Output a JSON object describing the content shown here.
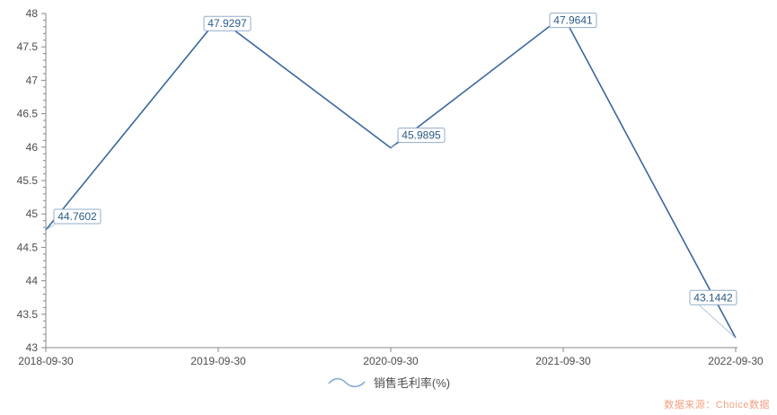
{
  "chart_data": {
    "type": "line",
    "title": "",
    "categories": [
      "2018-09-30",
      "2019-09-30",
      "2020-09-30",
      "2021-09-30",
      "2022-09-30"
    ],
    "series": [
      {
        "name": "销售毛利率(%)",
        "values": [
          44.7602,
          47.9297,
          45.9895,
          47.9641,
          43.1442
        ]
      }
    ],
    "point_labels": [
      "44.7602",
      "47.9297",
      "45.9895",
      "47.9641",
      "43.1442"
    ],
    "xlabel": "",
    "ylabel": "",
    "ylim": [
      43,
      48
    ],
    "y_tick_step": 0.5,
    "y_minor_tick_step": 0.1,
    "y_tick_labels": [
      "43",
      "43.5",
      "44",
      "44.5",
      "45",
      "45.5",
      "46",
      "46.5",
      "47",
      "47.5",
      "48"
    ],
    "grid": false,
    "legend_position": "bottom-center"
  },
  "legend": {
    "label": "销售毛利率(%)"
  },
  "source_note": "数据来源：Choice数据",
  "colors": {
    "series_line": "#3a679e",
    "point_label_text": "#2b5a87",
    "point_label_border": "#92accc",
    "point_label_bg": "#ffffff",
    "leader_line": "#a6bcd4",
    "axis_line": "#888888",
    "tick_label_text": "#4d4d4d",
    "legend_symbol": "#7ba6cf",
    "legend_text": "#4d4d4d",
    "source_text": "#f2a284"
  }
}
